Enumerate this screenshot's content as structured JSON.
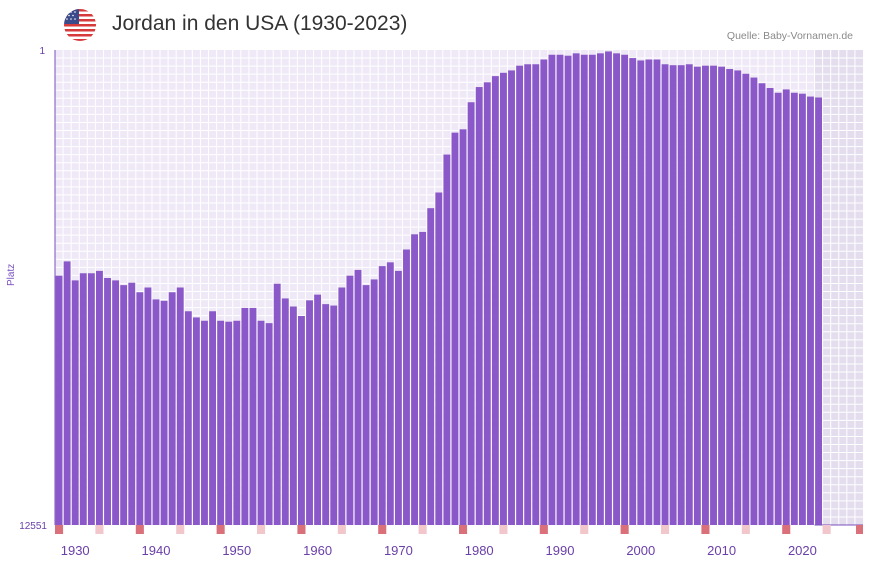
{
  "header": {
    "title": "Jordan in den USA (1930-2023)",
    "source": "Quelle: Baby-Vornamen.de",
    "flag_icon": "us-flag-icon"
  },
  "colors": {
    "bar": "#8a58c8",
    "plot_bg": "#efe9f7",
    "future_bg": "#e3ddee",
    "grid": "#ffffff",
    "axis": "#7a4fbf",
    "tick_text": "#6a3fa8",
    "marker_strong": "#d9707a",
    "marker_light": "#f1c7cc"
  },
  "chart_data": {
    "type": "bar",
    "title": "Jordan in den USA (1930-2023)",
    "xlabel": "",
    "ylabel": "Platz",
    "y_axis_inverted": true,
    "ylim": [
      1,
      12551
    ],
    "y_tick_labels": [
      "1",
      "12551"
    ],
    "x_tick_labels": [
      "1930",
      "1940",
      "1950",
      "1960",
      "1970",
      "1980",
      "1990",
      "2000",
      "2010",
      "2020"
    ],
    "x_range": [
      1928,
      2028
    ],
    "years": [
      1928,
      1929,
      1930,
      1931,
      1932,
      1933,
      1934,
      1935,
      1936,
      1937,
      1938,
      1939,
      1940,
      1941,
      1942,
      1943,
      1944,
      1945,
      1946,
      1947,
      1948,
      1949,
      1950,
      1951,
      1952,
      1953,
      1954,
      1955,
      1956,
      1957,
      1958,
      1959,
      1960,
      1961,
      1962,
      1963,
      1964,
      1965,
      1966,
      1967,
      1968,
      1969,
      1970,
      1971,
      1972,
      1973,
      1974,
      1975,
      1976,
      1977,
      1978,
      1979,
      1980,
      1981,
      1982,
      1983,
      1984,
      1985,
      1986,
      1987,
      1988,
      1989,
      1990,
      1991,
      1992,
      1993,
      1994,
      1995,
      1996,
      1997,
      1998,
      1999,
      2000,
      2001,
      2002,
      2003,
      2004,
      2005,
      2006,
      2007,
      2008,
      2009,
      2010,
      2011,
      2012,
      2013,
      2014,
      2015,
      2016,
      2017,
      2018,
      2019,
      2020,
      2021,
      2022
    ],
    "bar_fill_fraction": [
      0.525,
      0.555,
      0.515,
      0.53,
      0.53,
      0.535,
      0.52,
      0.515,
      0.505,
      0.51,
      0.49,
      0.5,
      0.475,
      0.472,
      0.49,
      0.5,
      0.45,
      0.437,
      0.43,
      0.45,
      0.43,
      0.428,
      0.43,
      0.457,
      0.457,
      0.43,
      0.425,
      0.508,
      0.477,
      0.46,
      0.44,
      0.473,
      0.485,
      0.465,
      0.462,
      0.5,
      0.525,
      0.537,
      0.505,
      0.517,
      0.545,
      0.553,
      0.535,
      0.58,
      0.612,
      0.617,
      0.667,
      0.7,
      0.78,
      0.826,
      0.833,
      0.89,
      0.922,
      0.932,
      0.945,
      0.952,
      0.957,
      0.967,
      0.97,
      0.97,
      0.98,
      0.99,
      0.99,
      0.988,
      0.993,
      0.99,
      0.99,
      0.993,
      0.997,
      0.993,
      0.99,
      0.983,
      0.978,
      0.98,
      0.98,
      0.97,
      0.968,
      0.968,
      0.97,
      0.965,
      0.967,
      0.967,
      0.965,
      0.96,
      0.957,
      0.95,
      0.942,
      0.93,
      0.92,
      0.91,
      0.917,
      0.91,
      0.908,
      0.902,
      0.9
    ],
    "markers_strong": [
      1928,
      1938,
      1948,
      1958,
      1968,
      1978,
      1988,
      1998,
      2008,
      2018,
      2028
    ],
    "markers_light": [
      1933,
      1943,
      1953,
      1963,
      1973,
      1983,
      1993,
      2003,
      2013,
      2023
    ],
    "future_start": 2022
  }
}
